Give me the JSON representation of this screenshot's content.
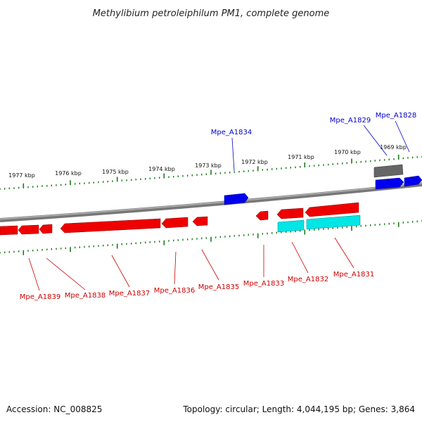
{
  "header": {
    "title": "Methylibium petroleiphilum PM1, complete genome"
  },
  "footer": {
    "accession": "Accession: NC_008825",
    "summary": "Topology: circular; Length: 4,044,195 bp; Genes: 3,864"
  },
  "colors": {
    "forward_gene": "#0000ee",
    "reverse_gene": "#ee0000",
    "rna": "#00e5e5",
    "other": "#666666",
    "ticks": "#1a7a1a",
    "backbone": "#888888",
    "forward_label": "#0000cc",
    "reverse_label": "#cc0000"
  },
  "scale_labels": [
    "1977 kbp",
    "1976 kbp",
    "1975 kbp",
    "1974 kbp",
    "1973 kbp",
    "1972 kbp",
    "1971 kbp",
    "1970 kbp",
    "1969 kbp"
  ],
  "genes_forward": [
    {
      "label": "Mpe_A1834"
    },
    {
      "label": "Mpe_A1829"
    },
    {
      "label": "Mpe_A1828"
    }
  ],
  "genes_reverse": [
    {
      "label": "Mpe_A1839"
    },
    {
      "label": "Mpe_A1838"
    },
    {
      "label": "Mpe_A1837"
    },
    {
      "label": "Mpe_A1836"
    },
    {
      "label": "Mpe_A1835"
    },
    {
      "label": "Mpe_A1833"
    },
    {
      "label": "Mpe_A1832"
    },
    {
      "label": "Mpe_A1831"
    }
  ]
}
